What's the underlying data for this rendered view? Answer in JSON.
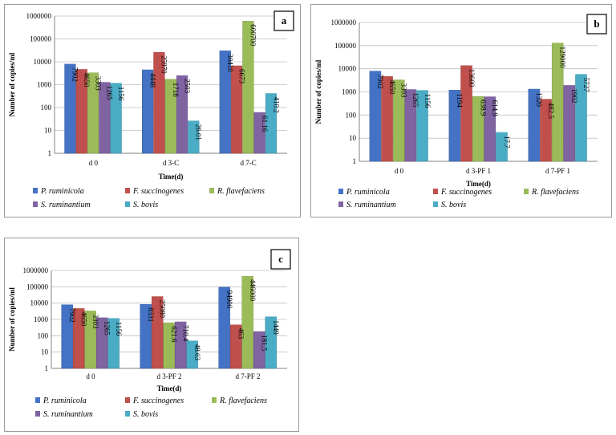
{
  "colors": {
    "P. ruminicola": "#4472C4",
    "F. succinogenes": "#C0504D",
    "R. flavefaciens": "#9BBB59",
    "S. ruminantium": "#8064A2",
    "S. bovis": "#4BACC6"
  },
  "chart_data": [
    {
      "type": "bar",
      "panel_label": "a",
      "ylabel": "Number of copies/ml",
      "xlabel": "Time(d)",
      "y_scale": "log",
      "ylim": [
        1,
        1000000
      ],
      "y_ticks": [
        "1",
        "10",
        "100",
        "1000",
        "10000",
        "100000",
        "1000000"
      ],
      "categories": [
        "d 0",
        "d 3-C",
        "d 7-C"
      ],
      "series": [
        {
          "name": "P. ruminicola",
          "values": [
            7902,
            4448,
            30410
          ],
          "labels": [
            "7902",
            "4448",
            "30410"
          ]
        },
        {
          "name": "F. succinogenes",
          "values": [
            4650,
            25970,
            6673
          ],
          "labels": [
            "4650",
            "25970",
            "6673"
          ]
        },
        {
          "name": "R. flavefaciens",
          "values": [
            3303,
            1718,
            600700
          ],
          "labels": [
            "3303",
            "1718",
            "600700"
          ]
        },
        {
          "name": "S. ruminantium",
          "values": [
            1265,
            2503,
            61.16
          ],
          "labels": [
            "1265",
            "2503",
            "61.16"
          ]
        },
        {
          "name": "S. bovis",
          "values": [
            1156,
            26.01,
            410.2
          ],
          "labels": [
            "1156",
            "26.01",
            "410.2"
          ]
        }
      ],
      "legend_position": "bottom"
    },
    {
      "type": "bar",
      "panel_label": "b",
      "ylabel": "Number of copies/ml",
      "xlabel": "Time(d)",
      "y_scale": "log",
      "ylim": [
        1,
        1000000
      ],
      "y_ticks": [
        "1",
        "10",
        "100",
        "1000",
        "10000",
        "100000",
        "1000000"
      ],
      "categories": [
        "d 0",
        "d 3-PF 1",
        "d 7-PF 1"
      ],
      "series": [
        {
          "name": "P. ruminicola",
          "values": [
            7902,
            1194,
            1320
          ],
          "labels": [
            "7902",
            "1194",
            "1320"
          ]
        },
        {
          "name": "F. succinogenes",
          "values": [
            4650,
            13600,
            482.5
          ],
          "labels": [
            "4650",
            "13600",
            "482.5"
          ]
        },
        {
          "name": "R. flavefaciens",
          "values": [
            3303,
            638.9,
            129000
          ],
          "labels": [
            "3303",
            "638.9",
            "129000"
          ]
        },
        {
          "name": "S. ruminantium",
          "values": [
            1265,
            614.9,
            1902
          ],
          "labels": [
            "1265",
            "614.9",
            "1902"
          ]
        },
        {
          "name": "S. bovis",
          "values": [
            1156,
            17.7,
            5727
          ],
          "labels": [
            "1156",
            "17.7",
            "5727"
          ]
        }
      ],
      "legend_position": "bottom"
    },
    {
      "type": "bar",
      "panel_label": "c",
      "ylabel": "Number of copies/ml",
      "xlabel": "Time(d)",
      "y_scale": "log",
      "ylim": [
        1,
        1000000
      ],
      "y_ticks": [
        "1",
        "10",
        "100",
        "1000",
        "10000",
        "100000",
        "1000000"
      ],
      "categories": [
        "d 0",
        "d 3-PF 2",
        "d 7-PF 2"
      ],
      "series": [
        {
          "name": "P. ruminicola",
          "values": [
            7902,
            8331,
            94900
          ],
          "labels": [
            "7902",
            "8331",
            "94900"
          ]
        },
        {
          "name": "F. succinogenes",
          "values": [
            4650,
            25080,
            463
          ],
          "labels": [
            "4650",
            "25080",
            "463"
          ]
        },
        {
          "name": "R. flavefaciens",
          "values": [
            3303,
            621.6,
            446000
          ],
          "labels": [
            "3303",
            "621.6",
            "446000"
          ]
        },
        {
          "name": "S. ruminantium",
          "values": [
            1265,
            710.4,
            181.5
          ],
          "labels": [
            "1265",
            "710.4",
            "181.5"
          ]
        },
        {
          "name": "S. bovis",
          "values": [
            1156,
            48.03,
            1449
          ],
          "labels": [
            "1156",
            "48.03",
            "1449"
          ]
        }
      ],
      "legend_position": "bottom"
    }
  ]
}
